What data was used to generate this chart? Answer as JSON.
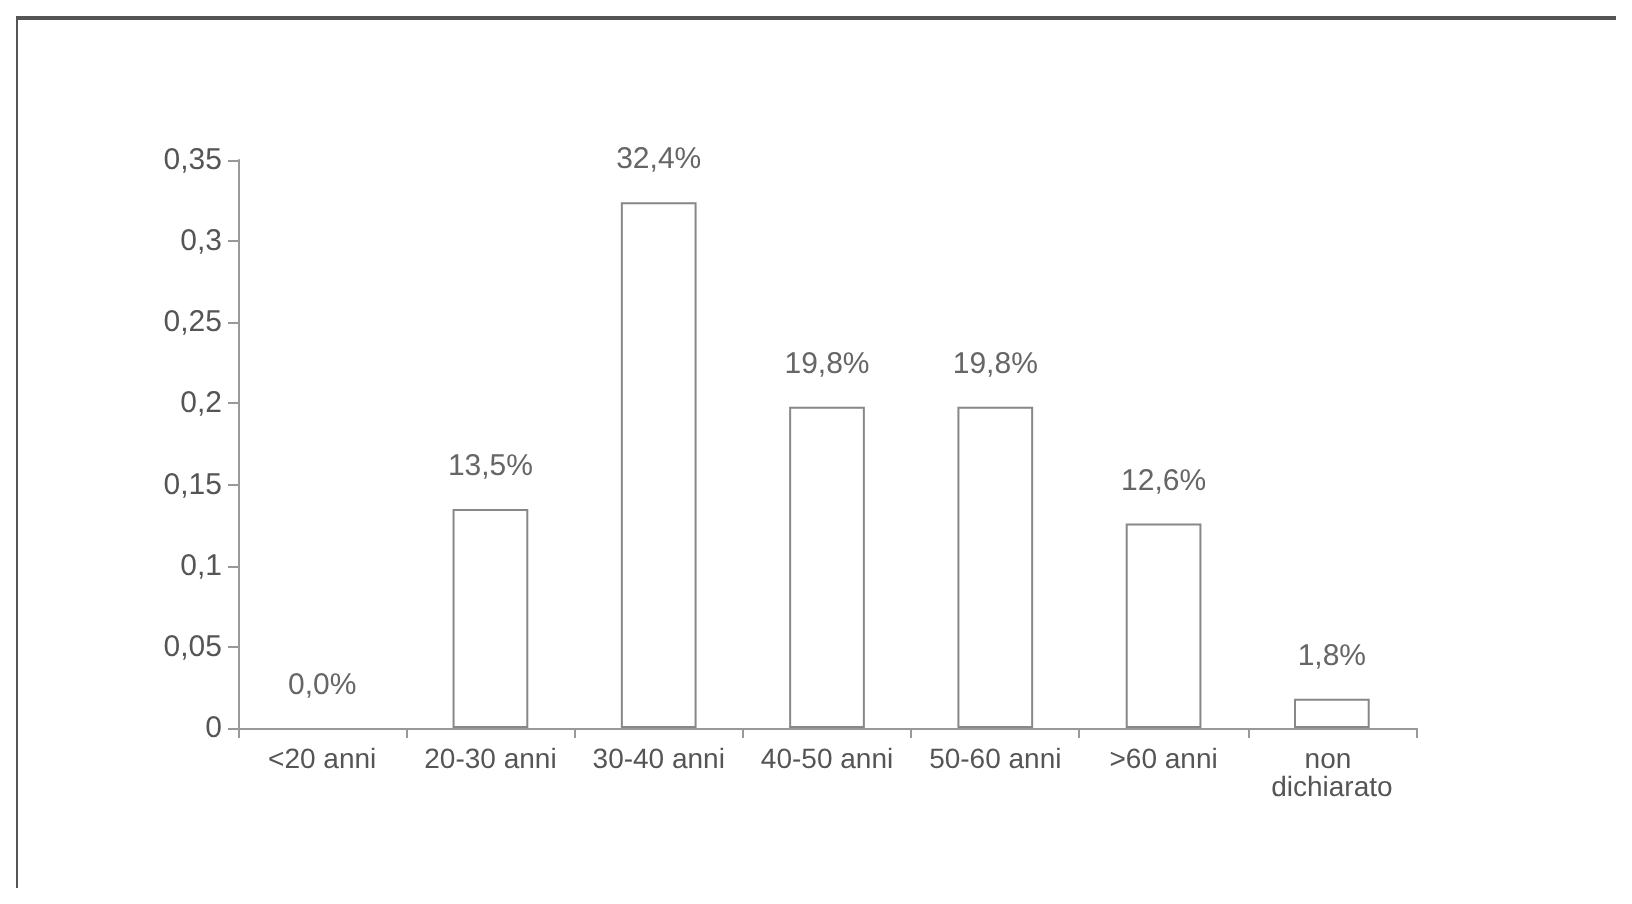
{
  "chart_data": {
    "type": "bar",
    "categories": [
      "<20 anni",
      "20-30 anni",
      "30-40 anni",
      "40-50 anni",
      "50-60 anni",
      ">60 anni",
      "non dichiarato"
    ],
    "values": [
      0,
      0.135,
      0.324,
      0.198,
      0.198,
      0.126,
      0.018
    ],
    "value_labels": [
      "0,0%",
      "13,5%",
      "32,4%",
      "19,8%",
      "19,8%",
      "12,6%",
      "1,8%"
    ],
    "color": "#ffffff",
    "ylim": [
      0,
      0.35
    ],
    "yticks": [
      0,
      {
        "value": 0.05,
        "label": "0,05"
      },
      {
        "value": 0.1,
        "label": "0,1"
      },
      {
        "value": 0.15,
        "label": "0,15"
      },
      {
        "value": 0.2,
        "label": "0,2"
      },
      {
        "value": 0.25,
        "label": "0,25"
      },
      {
        "value": 0.3,
        "label": "0,3"
      },
      {
        "value": 0.35,
        "label": "0,35"
      }
    ],
    "grid": false
  }
}
